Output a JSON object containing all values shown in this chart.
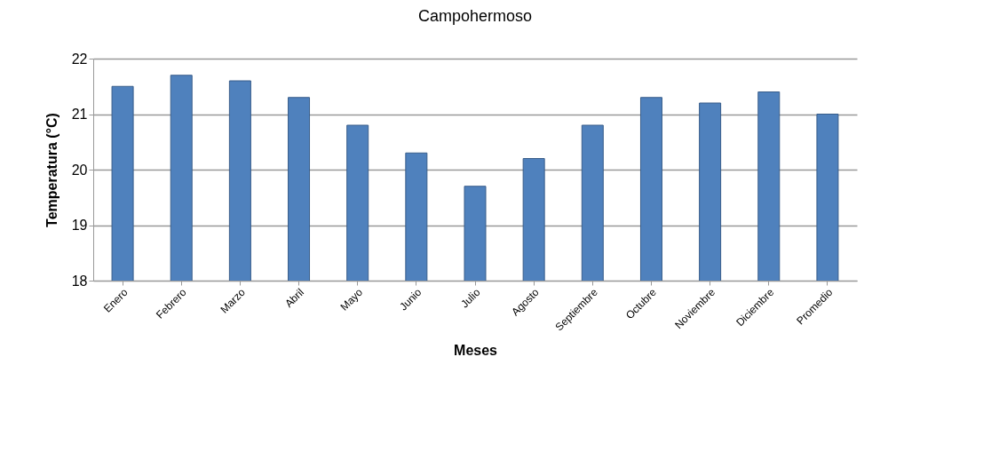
{
  "chart_data": {
    "type": "bar",
    "title": "Campohermoso",
    "xlabel": "Meses",
    "ylabel": "Temperatura (°C)",
    "categories": [
      "Enero",
      "Febrero",
      "Marzo",
      "Abril",
      "Mayo",
      "Junio",
      "Julio",
      "Agosto",
      "Septiembre",
      "Octubre",
      "Noviembre",
      "Diciembre",
      "Promedio"
    ],
    "values": [
      21.5,
      21.7,
      21.6,
      21.3,
      20.8,
      20.3,
      19.7,
      20.2,
      20.8,
      21.3,
      21.2,
      21.4,
      21.0
    ],
    "color": "#4f81bd",
    "ylim": [
      18,
      22
    ],
    "yticks": [
      18,
      19,
      20,
      21,
      22
    ],
    "grid": "y"
  }
}
